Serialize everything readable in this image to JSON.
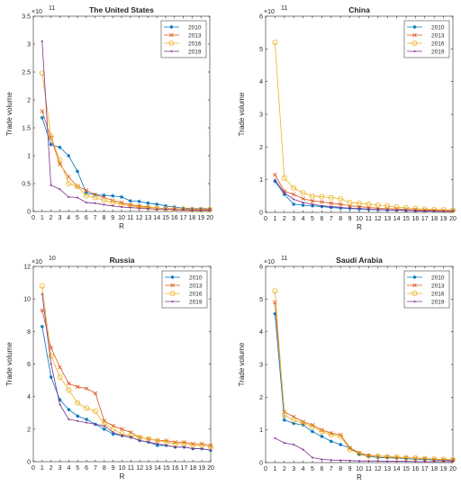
{
  "chart_data": [
    {
      "type": "line",
      "title": "The United States",
      "xlabel": "R",
      "ylabel": "Trade volume",
      "y_exponent": "×10",
      "y_exponent_power": "11",
      "xlim": [
        0,
        20
      ],
      "ylim": [
        0,
        3.5
      ],
      "xticks": [
        0,
        1,
        2,
        3,
        4,
        5,
        6,
        7,
        8,
        9,
        10,
        11,
        12,
        13,
        14,
        15,
        16,
        17,
        18,
        19,
        20
      ],
      "yticks": [
        0,
        0.5,
        1,
        1.5,
        2,
        2.5,
        3,
        3.5
      ],
      "ytick_labels": [
        "0",
        "0.5",
        "1",
        "1.5",
        "2",
        "2.5",
        "3",
        "3.5"
      ],
      "legend_position": "top-right",
      "x": [
        1,
        2,
        3,
        4,
        5,
        6,
        7,
        8,
        9,
        10,
        11,
        12,
        13,
        14,
        15,
        16,
        17,
        18,
        19,
        20
      ],
      "series": [
        {
          "name": "2010",
          "color": "#0072bd",
          "marker": "asterisk",
          "values": [
            1.68,
            1.2,
            1.15,
            1.0,
            0.72,
            0.33,
            0.3,
            0.29,
            0.28,
            0.26,
            0.19,
            0.18,
            0.15,
            0.13,
            0.1,
            0.08,
            0.06,
            0.05,
            0.05,
            0.05
          ]
        },
        {
          "name": "2013",
          "color": "#d95319",
          "marker": "x",
          "values": [
            1.8,
            1.32,
            0.85,
            0.62,
            0.45,
            0.38,
            0.3,
            0.25,
            0.2,
            0.16,
            0.12,
            0.1,
            0.08,
            0.06,
            0.05,
            0.05,
            0.04,
            0.04,
            0.04,
            0.04
          ]
        },
        {
          "name": "2016",
          "color": "#edb120",
          "marker": "circle",
          "values": [
            2.48,
            1.35,
            0.92,
            0.5,
            0.45,
            0.28,
            0.25,
            0.2,
            0.16,
            0.13,
            0.1,
            0.08,
            0.07,
            0.06,
            0.05,
            0.04,
            0.04,
            0.03,
            0.03,
            0.03
          ]
        },
        {
          "name": "2019",
          "color": "#7e2f8e",
          "marker": "dot",
          "values": [
            3.05,
            0.47,
            0.4,
            0.26,
            0.25,
            0.16,
            0.15,
            0.12,
            0.1,
            0.08,
            0.07,
            0.06,
            0.05,
            0.04,
            0.04,
            0.03,
            0.03,
            0.02,
            0.02,
            0.02
          ]
        }
      ]
    },
    {
      "type": "line",
      "title": "China",
      "xlabel": "R",
      "ylabel": "Trade volume",
      "y_exponent": "×10",
      "y_exponent_power": "11",
      "xlim": [
        0,
        20
      ],
      "ylim": [
        0,
        6
      ],
      "xticks": [
        0,
        1,
        2,
        3,
        4,
        5,
        6,
        7,
        8,
        9,
        10,
        11,
        12,
        13,
        14,
        15,
        16,
        17,
        18,
        19,
        20
      ],
      "yticks": [
        0,
        1,
        2,
        3,
        4,
        5,
        6
      ],
      "ytick_labels": [
        "0",
        "1",
        "2",
        "3",
        "4",
        "5",
        "6"
      ],
      "legend_position": "top-right",
      "x": [
        1,
        2,
        3,
        4,
        5,
        6,
        7,
        8,
        9,
        10,
        11,
        12,
        13,
        14,
        15,
        16,
        17,
        18,
        19,
        20
      ],
      "series": [
        {
          "name": "2010",
          "color": "#0072bd",
          "marker": "asterisk",
          "values": [
            0.95,
            0.55,
            0.25,
            0.22,
            0.2,
            0.18,
            0.15,
            0.13,
            0.12,
            0.1,
            0.09,
            0.08,
            0.07,
            0.07,
            0.06,
            0.05,
            0.05,
            0.04,
            0.04,
            0.04
          ]
        },
        {
          "name": "2013",
          "color": "#d95319",
          "marker": "x",
          "values": [
            1.15,
            0.65,
            0.55,
            0.42,
            0.35,
            0.32,
            0.28,
            0.25,
            0.2,
            0.18,
            0.15,
            0.13,
            0.12,
            0.1,
            0.09,
            0.08,
            0.07,
            0.06,
            0.05,
            0.05
          ]
        },
        {
          "name": "2016",
          "color": "#edb120",
          "marker": "circle",
          "values": [
            5.2,
            1.05,
            0.75,
            0.6,
            0.5,
            0.48,
            0.45,
            0.42,
            0.3,
            0.28,
            0.25,
            0.22,
            0.2,
            0.16,
            0.14,
            0.12,
            0.1,
            0.09,
            0.08,
            0.07
          ]
        },
        {
          "name": "2019",
          "color": "#7e2f8e",
          "marker": "dot",
          "values": [
            1.0,
            0.6,
            0.4,
            0.3,
            0.25,
            0.2,
            0.18,
            0.15,
            0.13,
            0.12,
            0.1,
            0.09,
            0.08,
            0.07,
            0.06,
            0.05,
            0.04,
            0.04,
            0.03,
            0.03
          ]
        }
      ]
    },
    {
      "type": "line",
      "title": "Russia",
      "xlabel": "R",
      "ylabel": "Trade volume",
      "y_exponent": "×10",
      "y_exponent_power": "10",
      "xlim": [
        0,
        20
      ],
      "ylim": [
        0,
        12
      ],
      "xticks": [
        0,
        1,
        2,
        3,
        4,
        5,
        6,
        7,
        8,
        9,
        10,
        11,
        12,
        13,
        14,
        15,
        16,
        17,
        18,
        19,
        20
      ],
      "yticks": [
        0,
        2,
        4,
        6,
        8,
        10,
        12
      ],
      "ytick_labels": [
        "0",
        "2",
        "4",
        "6",
        "8",
        "10",
        "12"
      ],
      "legend_position": "top-right",
      "x": [
        1,
        2,
        3,
        4,
        5,
        6,
        7,
        8,
        9,
        10,
        11,
        12,
        13,
        14,
        15,
        16,
        17,
        18,
        19,
        20
      ],
      "series": [
        {
          "name": "2010",
          "color": "#0072bd",
          "marker": "asterisk",
          "values": [
            8.3,
            5.2,
            3.8,
            3.2,
            2.8,
            2.6,
            2.3,
            2.0,
            1.7,
            1.6,
            1.5,
            1.3,
            1.2,
            1.0,
            1.0,
            0.9,
            0.9,
            0.8,
            0.8,
            0.7
          ]
        },
        {
          "name": "2013",
          "color": "#d95319",
          "marker": "x",
          "values": [
            9.3,
            7.0,
            5.8,
            4.8,
            4.6,
            4.5,
            4.2,
            2.5,
            2.2,
            2.0,
            1.8,
            1.5,
            1.4,
            1.3,
            1.3,
            1.2,
            1.2,
            1.1,
            1.1,
            1.0
          ]
        },
        {
          "name": "2016",
          "color": "#edb120",
          "marker": "circle",
          "values": [
            10.8,
            6.5,
            5.2,
            4.4,
            3.6,
            3.3,
            3.1,
            2.3,
            2.0,
            1.7,
            1.6,
            1.5,
            1.4,
            1.3,
            1.2,
            1.1,
            1.1,
            1.0,
            1.0,
            0.9
          ]
        },
        {
          "name": "2019",
          "color": "#7e2f8e",
          "marker": "dot",
          "values": [
            10.3,
            6.0,
            3.5,
            2.6,
            2.5,
            2.4,
            2.3,
            2.2,
            1.8,
            1.6,
            1.5,
            1.3,
            1.2,
            1.1,
            1.0,
            0.9,
            0.9,
            0.8,
            0.8,
            0.7
          ]
        }
      ]
    },
    {
      "type": "line",
      "title": "Saudi Arabia",
      "xlabel": "R",
      "ylabel": "Trade volume",
      "y_exponent": "×10",
      "y_exponent_power": "11",
      "xlim": [
        0,
        20
      ],
      "ylim": [
        0,
        6
      ],
      "xticks": [
        0,
        1,
        2,
        3,
        4,
        5,
        6,
        7,
        8,
        9,
        10,
        11,
        12,
        13,
        14,
        15,
        16,
        17,
        18,
        19,
        20
      ],
      "yticks": [
        0,
        1,
        2,
        3,
        4,
        5,
        6
      ],
      "ytick_labels": [
        "0",
        "1",
        "2",
        "3",
        "4",
        "5",
        "6"
      ],
      "legend_position": "top-right",
      "x": [
        1,
        2,
        3,
        4,
        5,
        6,
        7,
        8,
        9,
        10,
        11,
        12,
        13,
        14,
        15,
        16,
        17,
        18,
        19,
        20
      ],
      "series": [
        {
          "name": "2010",
          "color": "#0072bd",
          "marker": "asterisk",
          "values": [
            4.55,
            1.3,
            1.2,
            1.15,
            0.95,
            0.8,
            0.65,
            0.55,
            0.45,
            0.25,
            0.2,
            0.15,
            0.15,
            0.14,
            0.12,
            0.1,
            0.1,
            0.08,
            0.07,
            0.06
          ]
        },
        {
          "name": "2013",
          "color": "#d95319",
          "marker": "x",
          "values": [
            4.9,
            1.55,
            1.4,
            1.25,
            1.15,
            1.0,
            0.9,
            0.85,
            0.45,
            0.3,
            0.22,
            0.2,
            0.18,
            0.16,
            0.15,
            0.13,
            0.12,
            0.1,
            0.09,
            0.08
          ]
        },
        {
          "name": "2016",
          "color": "#edb120",
          "marker": "circle",
          "values": [
            5.25,
            1.45,
            1.3,
            1.2,
            1.1,
            0.95,
            0.85,
            0.8,
            0.4,
            0.28,
            0.2,
            0.2,
            0.18,
            0.17,
            0.15,
            0.14,
            0.12,
            0.11,
            0.1,
            0.09
          ]
        },
        {
          "name": "2019",
          "color": "#7e2f8e",
          "marker": "dot",
          "values": [
            0.75,
            0.6,
            0.55,
            0.4,
            0.15,
            0.1,
            0.08,
            0.07,
            0.06,
            0.05,
            0.05,
            0.05,
            0.04,
            0.04,
            0.04,
            0.03,
            0.03,
            0.03,
            0.03,
            0.03
          ]
        }
      ]
    }
  ]
}
